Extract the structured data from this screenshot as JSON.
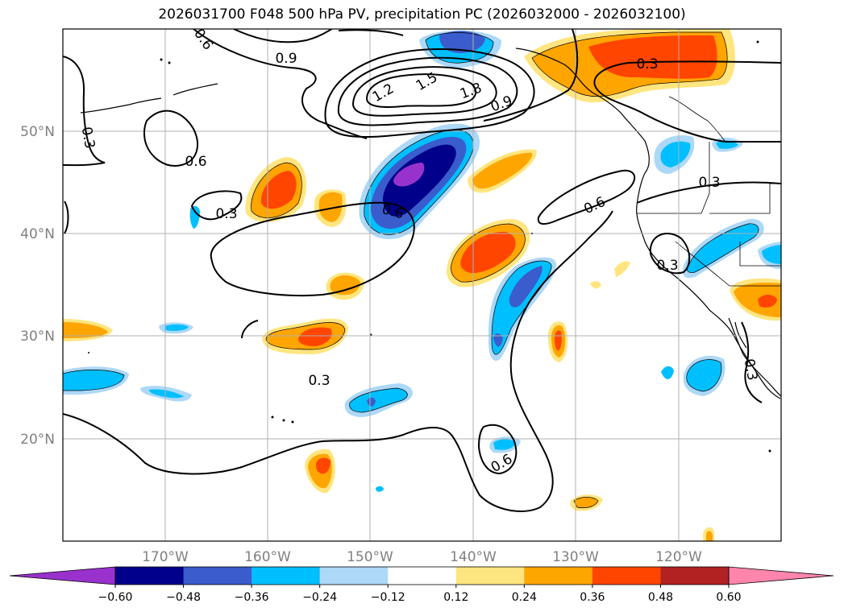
{
  "title": "2026031700 F048 500 hPa PV, precipitation PC (2026032000 - 2026032100)",
  "map": {
    "lat_ticks": [
      "50°N",
      "40°N",
      "30°N",
      "20°N"
    ],
    "lon_ticks": [
      "170°W",
      "160°W",
      "150°W",
      "140°W",
      "130°W",
      "120°W"
    ],
    "extent": {
      "lon": [
        -180,
        -110
      ],
      "lat": [
        10,
        60
      ]
    }
  },
  "colorbar": {
    "levels": [
      "−0.60",
      "−0.48",
      "−0.36",
      "−0.24",
      "−0.12",
      "0.12",
      "0.24",
      "0.36",
      "0.48",
      "0.60"
    ],
    "colors": [
      "#9932cc",
      "#00008b",
      "#3a5ccc",
      "#00bfff",
      "#add8f7",
      "#ffffff",
      "#ffe57f",
      "#ffa500",
      "#ff4500",
      "#b22222",
      "#ff85ad"
    ]
  },
  "contour_labels": [
    {
      "text": "0.6"
    },
    {
      "text": "0.9"
    },
    {
      "text": "1.2"
    },
    {
      "text": "1.5"
    },
    {
      "text": "1.8"
    },
    {
      "text": "0.9"
    },
    {
      "text": "0.3"
    },
    {
      "text": "0.3"
    },
    {
      "text": "0.6"
    },
    {
      "text": "0.3"
    },
    {
      "text": "0.6"
    },
    {
      "text": "0.6"
    },
    {
      "text": "0.3"
    },
    {
      "text": "0.3"
    },
    {
      "text": "0.3"
    },
    {
      "text": "0.6"
    },
    {
      "text": "0.3"
    }
  ]
}
